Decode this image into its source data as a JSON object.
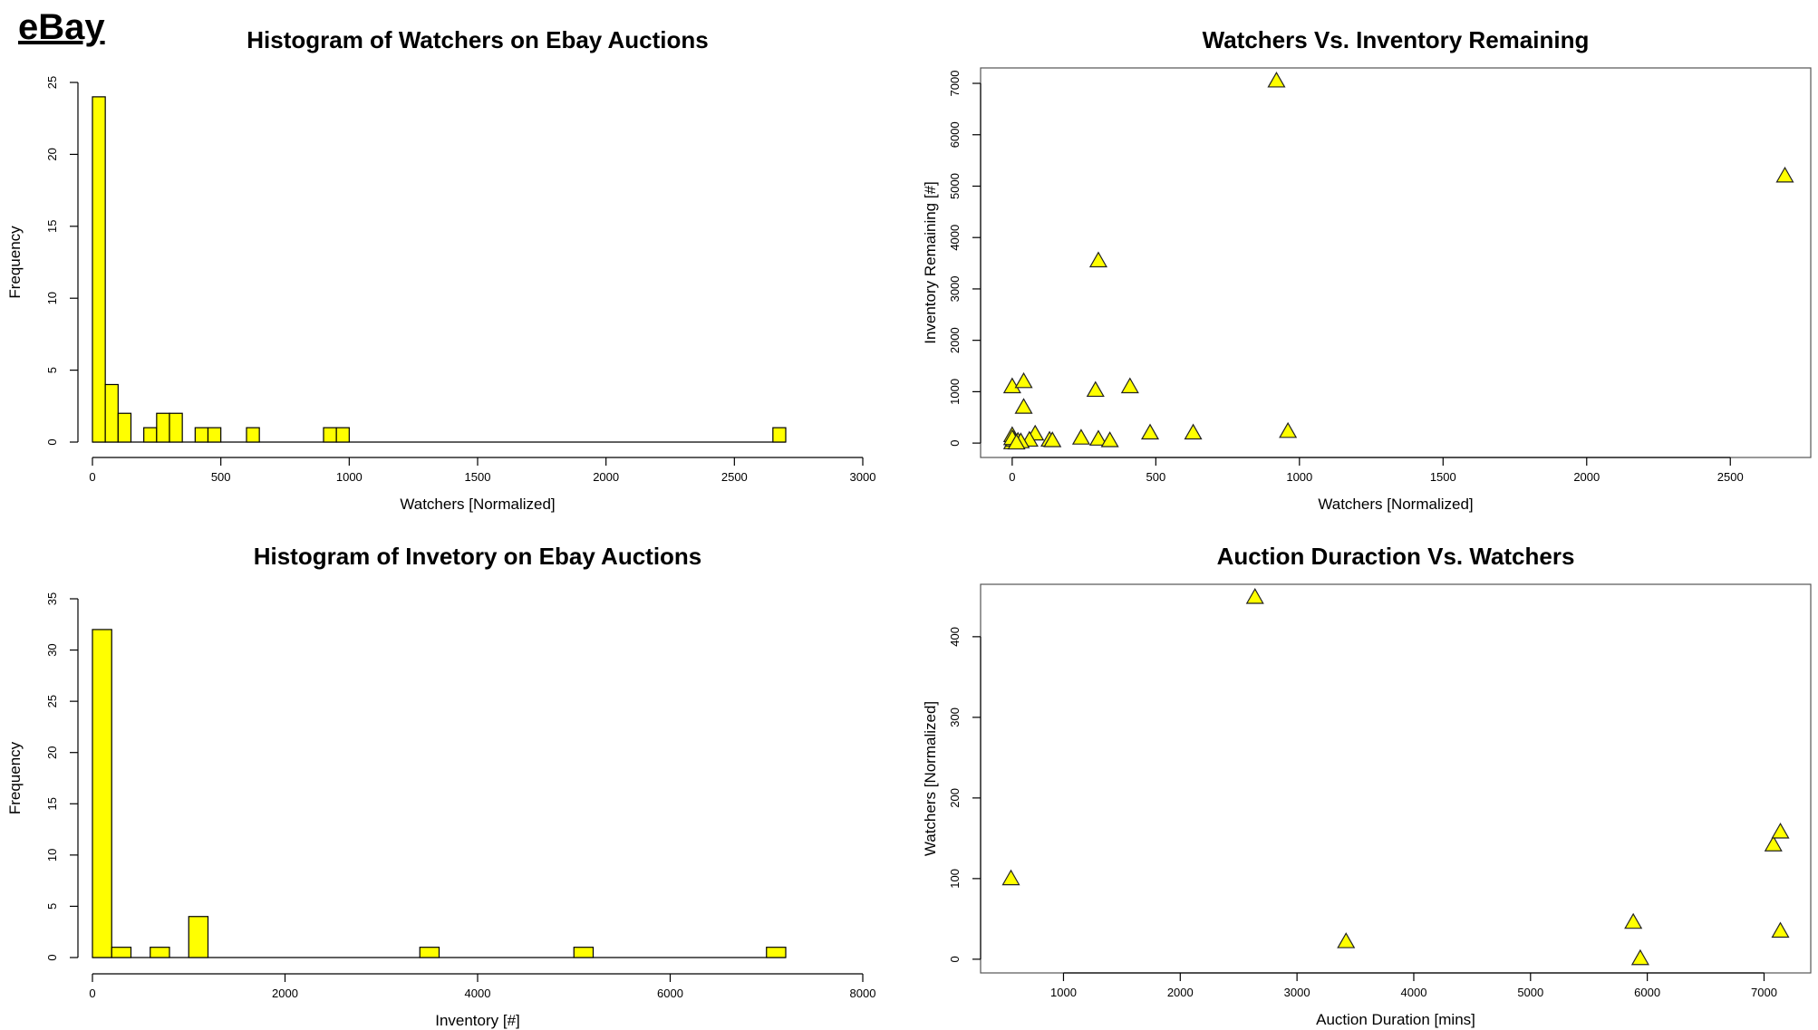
{
  "brand": "eBay",
  "chart_data": [
    {
      "type": "histogram",
      "title": "Histogram of Watchers on Ebay Auctions",
      "xlabel": "Watchers [Normalized]",
      "ylabel": "Frequency",
      "xlim": [
        0,
        3000
      ],
      "ylim": [
        0,
        25
      ],
      "xticks": [
        0,
        500,
        1000,
        1500,
        2000,
        2500,
        3000
      ],
      "yticks": [
        0,
        5,
        10,
        15,
        20,
        25
      ],
      "bin_width": 50,
      "bins": [
        {
          "x0": 0,
          "x1": 50,
          "count": 24
        },
        {
          "x0": 50,
          "x1": 100,
          "count": 4
        },
        {
          "x0": 100,
          "x1": 150,
          "count": 2
        },
        {
          "x0": 200,
          "x1": 250,
          "count": 1
        },
        {
          "x0": 250,
          "x1": 300,
          "count": 2
        },
        {
          "x0": 300,
          "x1": 350,
          "count": 2
        },
        {
          "x0": 400,
          "x1": 450,
          "count": 1
        },
        {
          "x0": 450,
          "x1": 500,
          "count": 1
        },
        {
          "x0": 600,
          "x1": 650,
          "count": 1
        },
        {
          "x0": 900,
          "x1": 950,
          "count": 1
        },
        {
          "x0": 950,
          "x1": 1000,
          "count": 1
        },
        {
          "x0": 2650,
          "x1": 2700,
          "count": 1
        }
      ],
      "fill": "#ffff00",
      "grid": false,
      "frame": false
    },
    {
      "type": "scatter",
      "title": "Watchers Vs. Inventory Remaining",
      "xlabel": "Watchers [Normalized]",
      "ylabel": "Inventory Remaining [#]",
      "xlim": [
        -110,
        2780
      ],
      "ylim": [
        -280,
        7300
      ],
      "xticks": [
        0,
        500,
        1000,
        1500,
        2000,
        2500
      ],
      "yticks": [
        0,
        1000,
        2000,
        3000,
        4000,
        5000,
        6000,
        7000
      ],
      "marker": "triangle",
      "fill": "#ffff00",
      "grid": false,
      "frame": true,
      "points": [
        {
          "x": 920,
          "y": 7050
        },
        {
          "x": 2690,
          "y": 5200
        },
        {
          "x": 300,
          "y": 3550
        },
        {
          "x": 0,
          "y": 1100
        },
        {
          "x": 40,
          "y": 1200
        },
        {
          "x": 290,
          "y": 1030
        },
        {
          "x": 410,
          "y": 1100
        },
        {
          "x": 40,
          "y": 700
        },
        {
          "x": 960,
          "y": 230
        },
        {
          "x": 630,
          "y": 200
        },
        {
          "x": 480,
          "y": 200
        },
        {
          "x": 80,
          "y": 180
        },
        {
          "x": 0,
          "y": 150
        },
        {
          "x": 240,
          "y": 100
        },
        {
          "x": 300,
          "y": 80
        },
        {
          "x": 340,
          "y": 50
        },
        {
          "x": 130,
          "y": 60
        },
        {
          "x": 140,
          "y": 50
        },
        {
          "x": 60,
          "y": 60
        },
        {
          "x": 20,
          "y": 40
        },
        {
          "x": 10,
          "y": 20
        },
        {
          "x": 0,
          "y": 10
        },
        {
          "x": 5,
          "y": 60
        },
        {
          "x": 30,
          "y": 30
        },
        {
          "x": 0,
          "y": 90
        },
        {
          "x": 15,
          "y": 5
        }
      ]
    },
    {
      "type": "histogram",
      "title": "Histogram of Invetory on Ebay Auctions",
      "xlabel": "Inventory [#]",
      "ylabel": "Frequency",
      "xlim": [
        0,
        8000
      ],
      "ylim": [
        0,
        35
      ],
      "xticks": [
        0,
        2000,
        4000,
        6000,
        8000
      ],
      "yticks": [
        0,
        5,
        10,
        15,
        20,
        25,
        30,
        35
      ],
      "bin_width": 200,
      "bins": [
        {
          "x0": 0,
          "x1": 200,
          "count": 32
        },
        {
          "x0": 200,
          "x1": 400,
          "count": 1
        },
        {
          "x0": 600,
          "x1": 800,
          "count": 1
        },
        {
          "x0": 1000,
          "x1": 1200,
          "count": 4
        },
        {
          "x0": 3400,
          "x1": 3600,
          "count": 1
        },
        {
          "x0": 5000,
          "x1": 5200,
          "count": 1
        },
        {
          "x0": 7000,
          "x1": 7200,
          "count": 1
        }
      ],
      "fill": "#ffff00",
      "grid": false,
      "frame": false
    },
    {
      "type": "scatter",
      "title": "Auction Duraction Vs. Watchers",
      "xlabel": "Auction Duration [mins]",
      "ylabel": "Watchers [Normalized]",
      "xlim": [
        290,
        7400
      ],
      "ylim": [
        -17,
        465
      ],
      "xticks": [
        1000,
        2000,
        3000,
        4000,
        5000,
        6000,
        7000
      ],
      "yticks": [
        0,
        100,
        200,
        300,
        400
      ],
      "marker": "triangle",
      "fill": "#ffff00",
      "grid": false,
      "frame": true,
      "points": [
        {
          "x": 550,
          "y": 100
        },
        {
          "x": 2640,
          "y": 449
        },
        {
          "x": 3420,
          "y": 22
        },
        {
          "x": 5880,
          "y": 46
        },
        {
          "x": 5940,
          "y": 1
        },
        {
          "x": 7080,
          "y": 142
        },
        {
          "x": 7140,
          "y": 158
        },
        {
          "x": 7140,
          "y": 35
        }
      ]
    }
  ]
}
